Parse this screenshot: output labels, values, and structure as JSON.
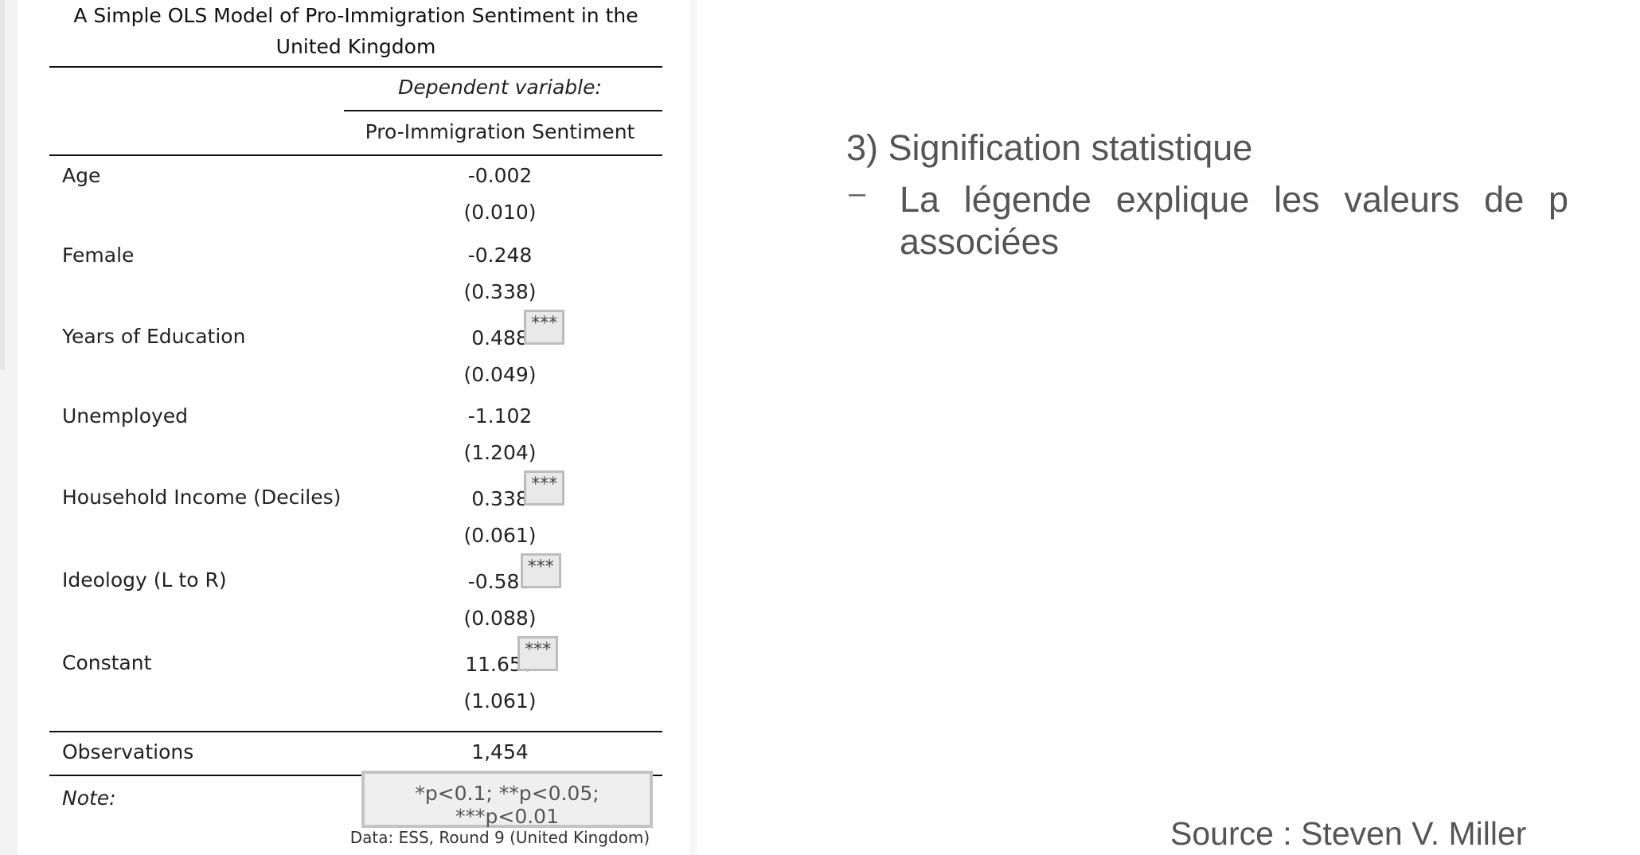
{
  "table": {
    "title": "A Simple OLS Model of Pro-Immigration Sentiment in the United Kingdom",
    "dependent_variable_label": "Dependent variable:",
    "dependent_variable_name": "Pro-Immigration Sentiment",
    "rows": [
      {
        "label": "Age",
        "coef": "-0.002",
        "se": "(0.010)",
        "stars": ""
      },
      {
        "label": "Female",
        "coef": "-0.248",
        "se": "(0.338)",
        "stars": ""
      },
      {
        "label": "Years of Education",
        "coef": "0.488",
        "se": "(0.049)",
        "stars": "***"
      },
      {
        "label": "Unemployed",
        "coef": "-1.102",
        "se": "(1.204)",
        "stars": ""
      },
      {
        "label": "Household Income (Deciles)",
        "coef": "0.338",
        "se": "(0.061)",
        "stars": "***"
      },
      {
        "label": "Ideology (L to R)",
        "coef": "-0.583",
        "se": "(0.088)",
        "stars": "***"
      },
      {
        "label": "Constant",
        "coef": "11.655",
        "se": "(1.061)",
        "stars": "***"
      }
    ],
    "observations_label": "Observations",
    "observations_value": "1,454",
    "note_label": "Note:",
    "note_text": "*p<0.1; **p<0.05; ***p<0.01",
    "data_source": "Data: ESS, Round 9 (United Kingdom)"
  },
  "slide": {
    "heading": "3) Signification statistique",
    "bullet_marker": "–",
    "bullet_text": "La légende explique les valeurs de p associées",
    "source": "Source : Steven V. Miller"
  }
}
